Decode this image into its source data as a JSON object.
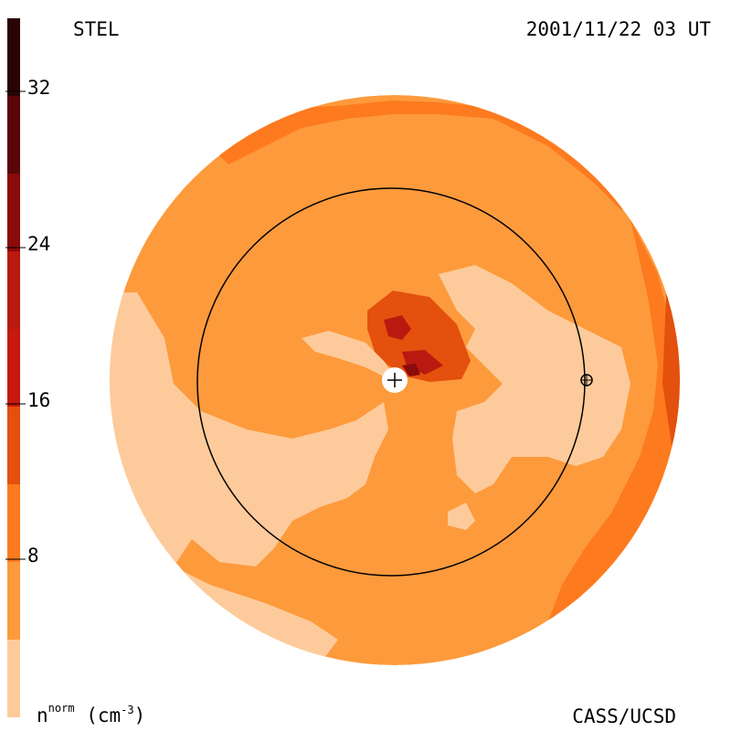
{
  "header": {
    "observatory": "STEL",
    "timestamp": "2001/11/22 03 UT"
  },
  "footer": {
    "credit": "CASS/UCSD",
    "unit_main": "n",
    "unit_sup": "norm",
    "unit_paren_open": " (cm",
    "unit_exp": "-3",
    "unit_paren_close": ")"
  },
  "colorbar": {
    "ticks": [
      "32",
      "24",
      "16",
      "8"
    ],
    "colors": {
      "band_0_4": "#fdcb9b",
      "band_4_12": "#fd9a3c",
      "band_12_16": "#f7721e",
      "band_16_20": "#dd4a0e",
      "band_20_24": "#b81a10",
      "band_24_28": "#8b0a0a",
      "band_28_32": "#5a0606",
      "band_32_36": "#2a0404"
    }
  },
  "chart_data": {
    "type": "heatmap",
    "description_scale": "normalized density",
    "scale_range": [
      0,
      36
    ],
    "tick_values": [
      8,
      16,
      24,
      32
    ],
    "levels": [
      {
        "min": 0,
        "max": 4,
        "color": "#fdcb9b"
      },
      {
        "min": 4,
        "max": 8,
        "color": "#fd9a3c"
      },
      {
        "min": 8,
        "max": 12,
        "color": "#fd9a3c"
      },
      {
        "min": 12,
        "max": 16,
        "color": "#f7721e"
      },
      {
        "min": 16,
        "max": 20,
        "color": "#dd4a0e"
      },
      {
        "min": 20,
        "max": 24,
        "color": "#b81a10"
      },
      {
        "min": 24,
        "max": 28,
        "color": "#8b0a0a"
      },
      {
        "min": 28,
        "max": 32,
        "color": "#5a0606"
      },
      {
        "min": 32,
        "max": 36,
        "color": "#2a0404"
      }
    ]
  }
}
